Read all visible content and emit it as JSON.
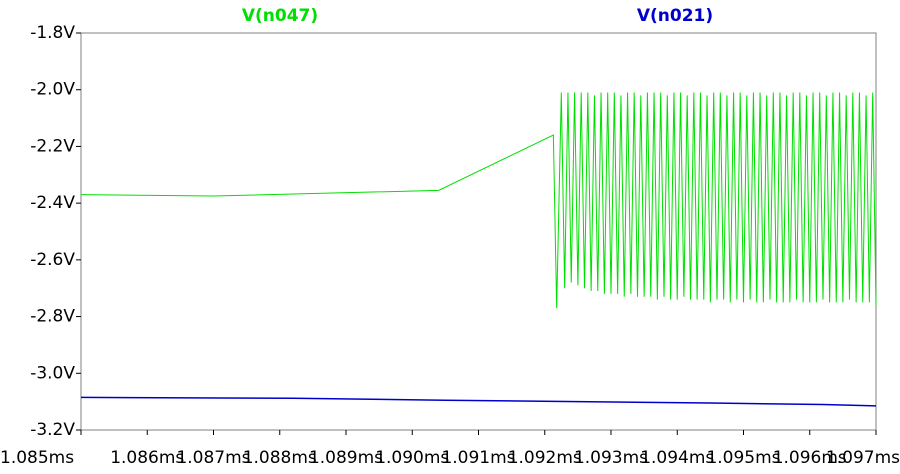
{
  "chart_data": {
    "type": "line",
    "xlim": [
      1.085,
      1.097
    ],
    "xticks": [
      {
        "value": 1.085,
        "label": "1.085ms"
      },
      {
        "value": 1.086,
        "label": "1.086ms"
      },
      {
        "value": 1.087,
        "label": "1.087ms"
      },
      {
        "value": 1.088,
        "label": "1.088ms"
      },
      {
        "value": 1.089,
        "label": "1.089ms"
      },
      {
        "value": 1.09,
        "label": "1.090ms"
      },
      {
        "value": 1.091,
        "label": "1.091ms"
      },
      {
        "value": 1.092,
        "label": "1.092ms"
      },
      {
        "value": 1.093,
        "label": "1.093ms"
      },
      {
        "value": 1.094,
        "label": "1.094ms"
      },
      {
        "value": 1.095,
        "label": "1.095ms"
      },
      {
        "value": 1.096,
        "label": "1.096ms"
      },
      {
        "value": 1.097,
        "label": "1.097ms"
      }
    ],
    "ylim": [
      -3.2,
      -1.8
    ],
    "yticks": [
      {
        "value": -1.8,
        "label": "-1.8V"
      },
      {
        "value": -2.0,
        "label": "-2.0V"
      },
      {
        "value": -2.2,
        "label": "-2.2V"
      },
      {
        "value": -2.4,
        "label": "-2.4V"
      },
      {
        "value": -2.6,
        "label": "-2.6V"
      },
      {
        "value": -2.8,
        "label": "-2.8V"
      },
      {
        "value": -3.0,
        "label": "-3.0V"
      },
      {
        "value": -3.2,
        "label": "-3.2V"
      }
    ],
    "series": [
      {
        "name": "V(n047)",
        "color": "#00e000",
        "x": [
          1.085,
          1.087,
          1.0904,
          1.09213,
          1.09218,
          1.09225,
          1.0923,
          1.09235,
          1.0924,
          1.09245,
          1.0925,
          1.09255,
          1.0926,
          1.09265,
          1.0927,
          1.09275,
          1.0928,
          1.09285,
          1.0929,
          1.09295,
          1.093,
          1.09305,
          1.0931,
          1.09315,
          1.0932,
          1.09325,
          1.0933,
          1.09335,
          1.0934,
          1.09345,
          1.0935,
          1.09355,
          1.0936,
          1.09365,
          1.0937,
          1.09375,
          1.0938,
          1.09385,
          1.0939,
          1.09395,
          1.094,
          1.09405,
          1.0941,
          1.09415,
          1.0942,
          1.09425,
          1.0943,
          1.09435,
          1.0944,
          1.09445,
          1.0945,
          1.09455,
          1.0946,
          1.09465,
          1.0947,
          1.09475,
          1.0948,
          1.09485,
          1.0949,
          1.09495,
          1.095,
          1.09505,
          1.0951,
          1.09515,
          1.0952,
          1.09525,
          1.0953,
          1.09535,
          1.0954,
          1.09545,
          1.0955,
          1.09555,
          1.0956,
          1.09565,
          1.0957,
          1.09575,
          1.0958,
          1.09585,
          1.0959,
          1.09595,
          1.096,
          1.09605,
          1.0961,
          1.09615,
          1.0962,
          1.09625,
          1.0963,
          1.09635,
          1.0964,
          1.09645,
          1.0965,
          1.09655,
          1.0966,
          1.09665,
          1.0967,
          1.09675,
          1.0968,
          1.09685,
          1.0969,
          1.09695,
          1.097
        ],
        "values": [
          -2.37,
          -2.375,
          -2.355,
          -2.16,
          -2.77,
          -2.01,
          -2.7,
          -2.01,
          -2.68,
          -2.01,
          -2.69,
          -2.01,
          -2.7,
          -2.01,
          -2.71,
          -2.02,
          -2.71,
          -2.01,
          -2.72,
          -2.01,
          -2.72,
          -2.01,
          -2.72,
          -2.02,
          -2.73,
          -2.01,
          -2.72,
          -2.01,
          -2.73,
          -2.02,
          -2.73,
          -2.01,
          -2.73,
          -2.01,
          -2.74,
          -2.01,
          -2.73,
          -2.02,
          -2.74,
          -2.01,
          -2.74,
          -2.01,
          -2.73,
          -2.02,
          -2.74,
          -2.01,
          -2.74,
          -2.01,
          -2.74,
          -2.02,
          -2.75,
          -2.01,
          -2.74,
          -2.01,
          -2.74,
          -2.02,
          -2.75,
          -2.01,
          -2.74,
          -2.01,
          -2.75,
          -2.02,
          -2.74,
          -2.01,
          -2.75,
          -2.01,
          -2.75,
          -2.02,
          -2.74,
          -2.01,
          -2.75,
          -2.01,
          -2.75,
          -2.02,
          -2.75,
          -2.01,
          -2.74,
          -2.01,
          -2.75,
          -2.02,
          -2.75,
          -2.01,
          -2.75,
          -2.01,
          -2.74,
          -2.02,
          -2.75,
          -2.01,
          -2.75,
          -2.01,
          -2.75,
          -2.02,
          -2.74,
          -2.01,
          -2.75,
          -2.01,
          -2.75,
          -2.02,
          -2.75,
          -2.01,
          -2.76
        ]
      },
      {
        "name": "V(n021)",
        "color": "#0000cc",
        "x": [
          1.085,
          1.0882,
          1.0905,
          1.0925,
          1.0945,
          1.0962,
          1.097
        ],
        "values": [
          -3.085,
          -3.088,
          -3.095,
          -3.1,
          -3.105,
          -3.11,
          -3.115
        ]
      }
    ]
  }
}
